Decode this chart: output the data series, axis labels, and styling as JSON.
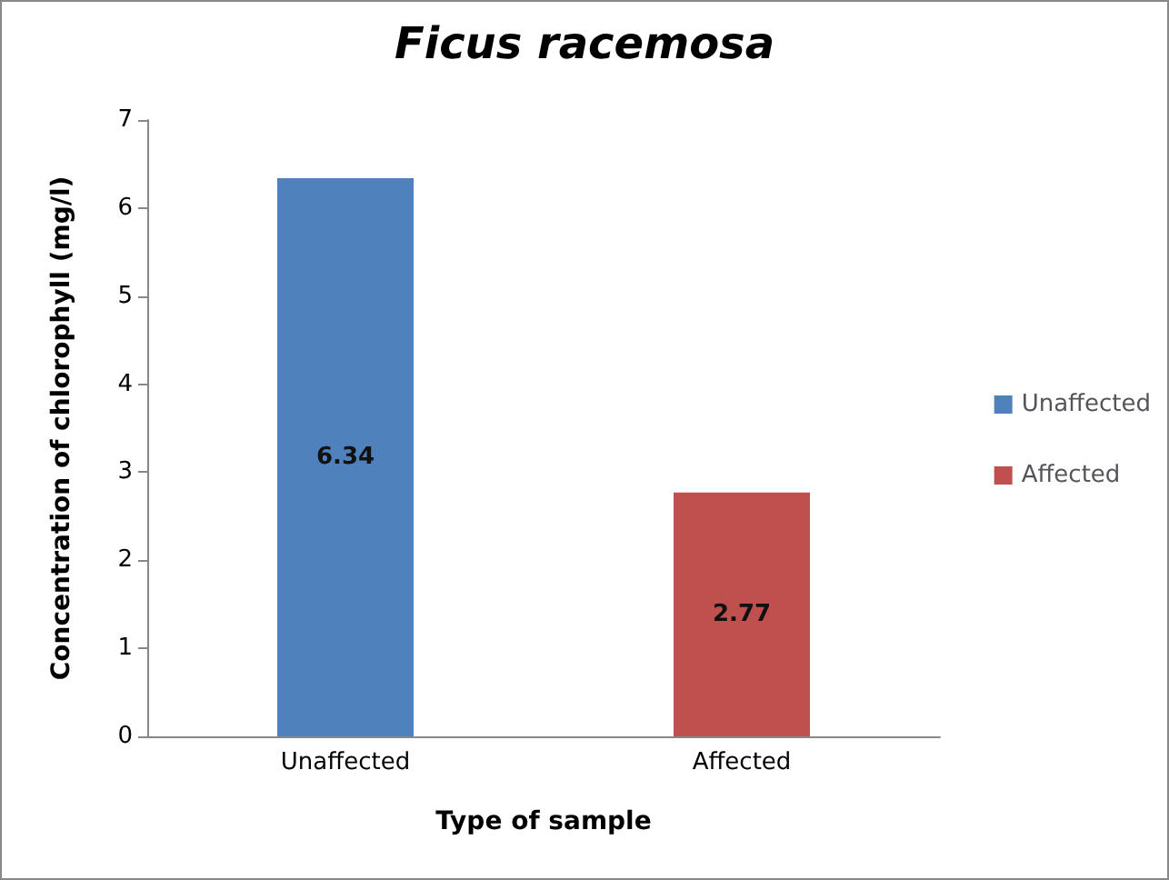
{
  "chart_data": {
    "type": "bar",
    "title": "Ficus racemosa",
    "xlabel": "Type of sample",
    "ylabel": "Concentration of chlorophyll (mg/l)",
    "categories": [
      "Unaffected",
      "Affected"
    ],
    "series": [
      {
        "name": "Unaffected",
        "color": "#4f81bd",
        "values": [
          6.34,
          null
        ]
      },
      {
        "name": "Affected",
        "color": "#c0504d",
        "values": [
          null,
          2.77
        ]
      }
    ],
    "stacked": true,
    "data_labels": true,
    "legend": "right",
    "ylim": [
      0,
      7
    ],
    "yticks": [
      0,
      1,
      2,
      3,
      4,
      5,
      6,
      7
    ]
  }
}
